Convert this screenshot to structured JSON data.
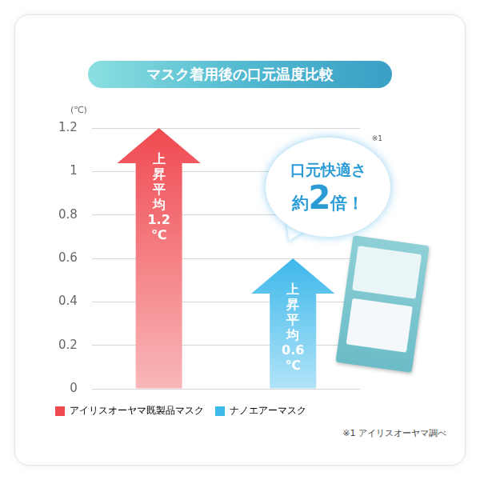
{
  "chart_data": {
    "type": "bar",
    "title": "マスク着用後の口元温度比較",
    "y_label": "(℃)",
    "categories": [
      "アイリスオーヤマ既製品マスク",
      "ナノエアーマスク"
    ],
    "values": [
      1.2,
      0.6
    ],
    "value_labels": [
      "上昇平均1.2℃",
      "上昇平均0.6℃"
    ],
    "colors": [
      "#ef4a50",
      "#3db8eb"
    ],
    "ylim": [
      0,
      1.2
    ],
    "yticks": [
      0,
      0.2,
      0.4,
      0.6,
      0.8,
      1,
      1.2
    ],
    "grid": true,
    "legend": "bottom",
    "data_labels": true,
    "tick_labels": "y",
    "annotations": [
      "口元快適さ",
      "約2倍！",
      "※1",
      "※1 アイリスオーヤマ調べ"
    ]
  }
}
